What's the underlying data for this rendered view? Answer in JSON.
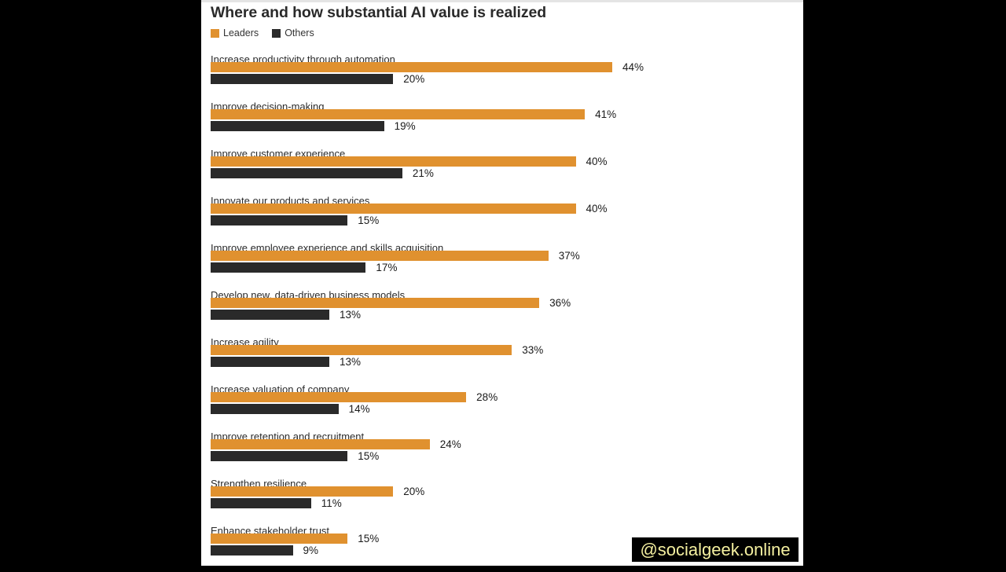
{
  "chart_data": {
    "type": "bar",
    "orientation": "horizontal",
    "title": "Where and how substantial AI value is realized",
    "xlabel": "",
    "ylabel": "",
    "unit": "%",
    "legend_position": "top-left",
    "grid": false,
    "xlim": [
      0,
      44
    ],
    "categories": [
      "Increase productivity through automation",
      "Improve decision-making",
      "Improve customer experience",
      "Innovate our products and services",
      "Improve employee experience and skills acquisition",
      "Develop new, data-driven business models",
      "Increase agility",
      "Increase valuation of company",
      "Improve retention and recruitment",
      "Strengthen resilience",
      "Enhance stakeholder trust"
    ],
    "series": [
      {
        "name": "Leaders",
        "color": "#E0912F",
        "values": [
          44,
          41,
          40,
          40,
          37,
          36,
          33,
          28,
          24,
          20,
          15
        ]
      },
      {
        "name": "Others",
        "color": "#2A2A2A",
        "values": [
          20,
          19,
          21,
          15,
          17,
          13,
          13,
          14,
          15,
          11,
          9
        ]
      }
    ]
  },
  "legend": {
    "leaders_label": "Leaders",
    "others_label": "Others"
  },
  "colors": {
    "leaders": "#E0912F",
    "others": "#2A2A2A"
  },
  "watermark": "@socialgeek.online"
}
